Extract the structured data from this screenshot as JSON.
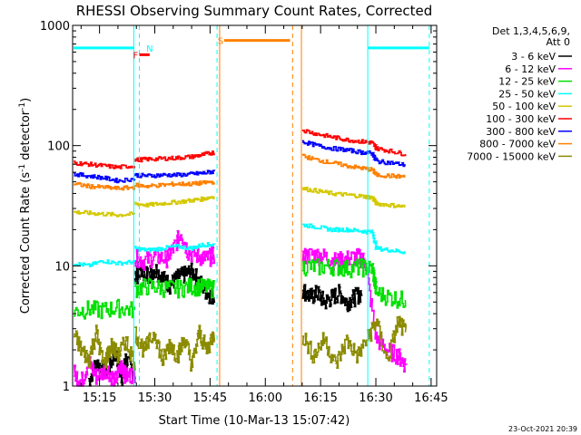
{
  "chart_data": {
    "type": "line",
    "title": "RHESSI Observing Summary Count Rates, Corrected",
    "xlabel": "Start Time (10-Mar-13 15:07:42)",
    "ylabel": "Corrected Count Rate (s⁻¹ detector⁻¹)",
    "ylabel_parts": {
      "main": "Corrected Count Rate (s",
      "exp1": "-1",
      "mid": " detector",
      "exp2": "-1",
      "end": ")"
    },
    "xlim_min": [
      907.7,
      1006.5
    ],
    "x_ticks_min": [
      915,
      930,
      945,
      960,
      975,
      990,
      1005
    ],
    "x_tick_labels": [
      "15:15",
      "15:30",
      "15:45",
      "16:00",
      "16:15",
      "16:30",
      "16:45"
    ],
    "y_log": true,
    "ylim": [
      1,
      1000
    ],
    "y_tick_labels": [
      {
        "v": 1,
        "label": "1"
      },
      {
        "v": 10,
        "label": "10"
      },
      {
        "v": 100,
        "label": "100"
      },
      {
        "v": 1000,
        "label": "1000"
      }
    ],
    "legend": {
      "placement": "right",
      "header_lines": [
        "Det 1,3,4,5,6,9,",
        "Att 0"
      ],
      "entries": [
        {
          "label": "3 - 6 keV",
          "color": "#000000"
        },
        {
          "label": "6 - 12 keV",
          "color": "#ff00ff"
        },
        {
          "label": "12 - 25 keV",
          "color": "#00e000"
        },
        {
          "label": "25 - 50 keV",
          "color": "#00ffff"
        },
        {
          "label": "50 - 100 keV",
          "color": "#d4c800"
        },
        {
          "label": "100 - 300 keV",
          "color": "#ff0000"
        },
        {
          "label": "300 - 800 keV",
          "color": "#0000ff"
        },
        {
          "label": "800 - 7000 keV",
          "color": "#ff8000"
        },
        {
          "label": "7000 - 15000 keV",
          "color": "#8b8b00"
        }
      ]
    },
    "series": [
      {
        "name": "3 - 6 keV",
        "color": "#000000",
        "segments": [
          {
            "x": [
              912,
              914,
              917,
              919,
              921,
              922,
              924.5
            ],
            "y": [
              1.1,
              1.6,
              1.3,
              1.9,
              1.2,
              1.7,
              1.2
            ]
          },
          {
            "x": [
              924.5,
              926,
              928,
              930,
              932,
              934,
              936,
              938,
              940,
              942,
              944,
              946
            ],
            "y": [
              8,
              9.5,
              8.5,
              9.5,
              8,
              7,
              8,
              8.5,
              9,
              7.5,
              6,
              5.5
            ]
          },
          {
            "x": [
              970,
              972,
              974,
              976,
              978,
              980,
              982,
              984,
              986
            ],
            "y": [
              6.5,
              5.5,
              6,
              5,
              5.5,
              6,
              5,
              5.5,
              6
            ]
          }
        ]
      },
      {
        "name": "6 - 12 keV",
        "color": "#ff00ff",
        "segments": [
          {
            "x": [
              908,
              910,
              912,
              914,
              917,
              919,
              921,
              922,
              924.5
            ],
            "y": [
              1.3,
              1.1,
              1.6,
              1.2,
              1.4,
              1.1,
              1.5,
              1.2,
              1.3
            ]
          },
          {
            "x": [
              924.5,
              927,
              930,
              933,
              935,
              937,
              939,
              942,
              944,
              946
            ],
            "y": [
              12,
              11,
              12,
              11.5,
              14,
              19,
              13,
              12,
              11.5,
              12.5
            ]
          },
          {
            "x": [
              970,
              973,
              976,
              979,
              982,
              985,
              987,
              990,
              993,
              996,
              998
            ],
            "y": [
              12,
              12.5,
              12,
              11,
              11.5,
              12,
              11,
              2.5,
              2,
              1.8,
              1.5
            ]
          }
        ]
      },
      {
        "name": "12 - 25 keV",
        "color": "#00e000",
        "segments": [
          {
            "x": [
              908,
              912,
              916,
              920,
              924.5
            ],
            "y": [
              4.2,
              4.4,
              4.3,
              4.5,
              4.3
            ]
          },
          {
            "x": [
              924.5,
              928,
              932,
              936,
              940,
              943,
              946
            ],
            "y": [
              6.5,
              6.8,
              6.6,
              6.5,
              6.8,
              6.7,
              6.5
            ]
          },
          {
            "x": [
              970,
              974,
              978,
              982,
              986,
              989,
              990,
              994,
              998
            ],
            "y": [
              10,
              9.8,
              10,
              9.6,
              9.8,
              9.5,
              6,
              5.5,
              5.2
            ]
          }
        ]
      },
      {
        "name": "25 - 50 keV",
        "color": "#00ffff",
        "segments": [
          {
            "x": [
              908,
              912,
              916,
              920,
              924.5
            ],
            "y": [
              10.5,
              10,
              11,
              10.5,
              10.8
            ]
          },
          {
            "x": [
              924.5,
              928,
              932,
              936,
              940,
              943,
              946
            ],
            "y": [
              14,
              13.5,
              14,
              14.5,
              14,
              15,
              15
            ]
          },
          {
            "x": [
              970,
              974,
              978,
              982,
              986,
              989,
              990,
              994,
              998
            ],
            "y": [
              22,
              21,
              20,
              20,
              19.5,
              19,
              14,
              13.5,
              13
            ]
          }
        ]
      },
      {
        "name": "50 - 100 keV",
        "color": "#d4c800",
        "segments": [
          {
            "x": [
              908,
              912,
              916,
              920,
              924.5
            ],
            "y": [
              28,
              27.5,
              27,
              26.5,
              27
            ]
          },
          {
            "x": [
              924.5,
              928,
              932,
              936,
              940,
              943,
              946
            ],
            "y": [
              33,
              32,
              33,
              34,
              35,
              36,
              38
            ]
          },
          {
            "x": [
              970,
              974,
              978,
              982,
              986,
              989,
              990,
              994,
              998
            ],
            "y": [
              44,
              42,
              40,
              39,
              38,
              37,
              33,
              32,
              31
            ]
          }
        ]
      },
      {
        "name": "100 - 300 keV",
        "color": "#ff0000",
        "segments": [
          {
            "x": [
              908,
              912,
              916,
              920,
              924.5
            ],
            "y": [
              72,
              70,
              68,
              66,
              68
            ]
          },
          {
            "x": [
              924.5,
              928,
              932,
              936,
              940,
              943,
              946
            ],
            "y": [
              76,
              77,
              78,
              79,
              81,
              84,
              88
            ]
          },
          {
            "x": [
              970,
              974,
              978,
              982,
              986,
              989,
              990,
              994,
              998
            ],
            "y": [
              135,
              125,
              118,
              112,
              108,
              106,
              95,
              90,
              85
            ]
          }
        ]
      },
      {
        "name": "300 - 800 keV",
        "color": "#0000ff",
        "segments": [
          {
            "x": [
              908,
              912,
              916,
              920,
              924.5
            ],
            "y": [
              58,
              56,
              54,
              51,
              53
            ]
          },
          {
            "x": [
              924.5,
              928,
              932,
              936,
              940,
              943,
              946
            ],
            "y": [
              57,
              56,
              57,
              57,
              58,
              59,
              61
            ]
          },
          {
            "x": [
              970,
              974,
              978,
              982,
              986,
              989,
              990,
              994,
              998
            ],
            "y": [
              108,
              100,
              95,
              92,
              88,
              86,
              74,
              72,
              69
            ]
          }
        ]
      },
      {
        "name": "800 - 7000 keV",
        "color": "#ff8000",
        "segments": [
          {
            "x": [
              908,
              912,
              916,
              920,
              924.5
            ],
            "y": [
              48,
              46,
              45,
              44,
              45
            ]
          },
          {
            "x": [
              924.5,
              928,
              932,
              936,
              940,
              943,
              946
            ],
            "y": [
              47,
              46,
              47,
              48,
              48,
              49,
              50
            ]
          },
          {
            "x": [
              970,
              974,
              978,
              982,
              986,
              989,
              990,
              994,
              998
            ],
            "y": [
              82,
              76,
              72,
              68,
              65,
              63,
              57,
              56,
              55
            ]
          }
        ]
      },
      {
        "name": "7000 - 15000 keV",
        "color": "#8b8b00",
        "segments": [
          {
            "x": [
              908,
              910,
              912,
              914,
              916,
              918,
              920,
              922,
              924.5
            ],
            "y": [
              2.7,
              2,
              1.7,
              2.8,
              1.5,
              2.2,
              1.8,
              2.4,
              1.6
            ]
          },
          {
            "x": [
              924.5,
              927,
              930,
              932,
              934,
              936,
              938,
              940,
              942,
              944,
              946
            ],
            "y": [
              2.8,
              2,
              2.8,
              1.6,
              2.3,
              1.8,
              2.5,
              1.5,
              2.8,
              2,
              2.8
            ]
          },
          {
            "x": [
              970,
              973,
              976,
              979,
              982,
              985,
              988,
              990,
              993,
              996,
              998
            ],
            "y": [
              2.7,
              1.8,
              2.5,
              1.5,
              2.4,
              1.8,
              2.6,
              3.5,
              1.6,
              3.5,
              2.8
            ]
          }
        ]
      }
    ],
    "annotations": {
      "markers": [
        {
          "label": "F",
          "color": "#ff0000",
          "x": [
            925.8,
            928.6
          ],
          "y": 570
        },
        {
          "label": "N",
          "color": "#00ffff",
          "x_label": 926.7
        },
        {
          "label": "S",
          "color": "#ff8000",
          "x": [
            948.8,
            966.7
          ],
          "y": 750
        }
      ],
      "attenuator_bars": [
        {
          "color": "#00ffff",
          "x": [
            908,
            924.3
          ],
          "y": 650
        },
        {
          "color": "#00ffff",
          "x": [
            987.8,
            1004.5
          ],
          "y": 650
        }
      ],
      "vlines": [
        {
          "x": 924.3,
          "color": "#00ffff",
          "style": "solid"
        },
        {
          "x": 925.8,
          "color": "#00ffff",
          "style": "dashed"
        },
        {
          "x": 946.9,
          "color": "#00ffff",
          "style": "dashed"
        },
        {
          "x": 947.6,
          "color": "#ff8000",
          "style": "solid"
        },
        {
          "x": 967.4,
          "color": "#ff8000",
          "style": "dashed"
        },
        {
          "x": 969.8,
          "color": "#ff8000",
          "style": "solid"
        },
        {
          "x": 987.8,
          "color": "#00ffff",
          "style": "solid"
        },
        {
          "x": 1004.5,
          "color": "#00ffff",
          "style": "dashed"
        }
      ]
    },
    "footer_stamp": "23-Oct-2021 20:39"
  }
}
